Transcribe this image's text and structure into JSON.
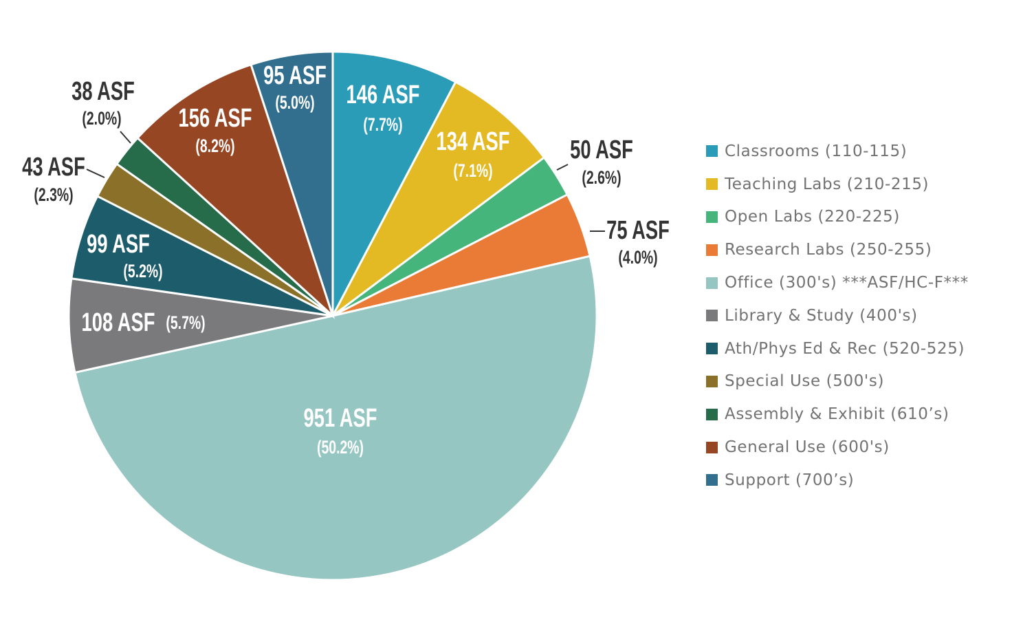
{
  "chart_data": {
    "type": "pie",
    "start": "top",
    "direction": "clockwise",
    "legend_position": "right",
    "slices": [
      {
        "name": "Classrooms (110-115)",
        "value": 146,
        "value_label": "146 ASF",
        "percent_label": "(7.7%)",
        "color": "#2a9cb8"
      },
      {
        "name": "Teaching Labs (210-215)",
        "value": 134,
        "value_label": "134 ASF",
        "percent_label": "(7.1%)",
        "color": "#e3b924"
      },
      {
        "name": "Open Labs (220-225)",
        "value": 50,
        "value_label": "50 ASF",
        "percent_label": "(2.6%)",
        "color": "#45b57b"
      },
      {
        "name": "Research Labs (250-255)",
        "value": 75,
        "value_label": "75 ASF",
        "percent_label": "(4.0%)",
        "color": "#e97b36"
      },
      {
        "name": "Office (300's) ***ASF/HC-F***",
        "value": 951,
        "value_label": "951 ASF",
        "percent_label": "(50.2%)",
        "color": "#96c6c2"
      },
      {
        "name": "Library & Study (400's)",
        "value": 108,
        "value_label": "108 ASF",
        "percent_label": "(5.7%)",
        "color": "#7a7a7c"
      },
      {
        "name": "Ath/Phys Ed & Rec (520-525)",
        "value": 99,
        "value_label": "99 ASF",
        "percent_label": "(5.2%)",
        "color": "#1c5c6b"
      },
      {
        "name": "Special Use (500's)",
        "value": 43,
        "value_label": "43 ASF",
        "percent_label": "(2.3%)",
        "color": "#8a7029"
      },
      {
        "name": "Assembly & Exhibit (610’s)",
        "value": 38,
        "value_label": "38 ASF",
        "percent_label": "(2.0%)",
        "color": "#266b4a"
      },
      {
        "name": "General Use (600's)",
        "value": 156,
        "value_label": "156 ASF",
        "percent_label": "(8.2%)",
        "color": "#974623"
      },
      {
        "name": "Support (700’s)",
        "value": 95,
        "value_label": "95 ASF",
        "percent_label": "(5.0%)",
        "color": "#326f8f"
      }
    ]
  }
}
